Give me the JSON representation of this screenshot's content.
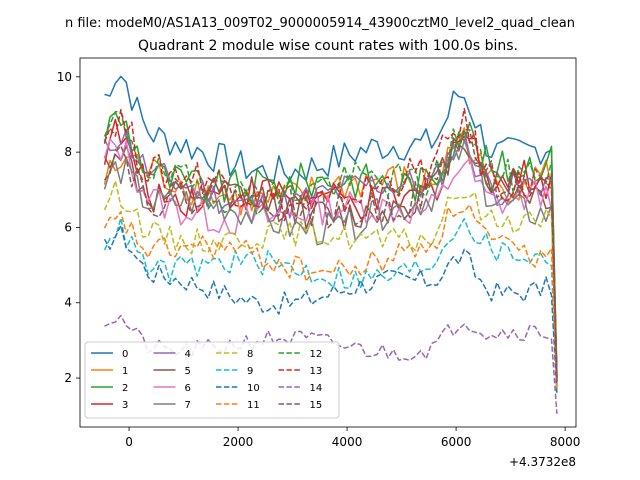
{
  "figure": {
    "suptitle": "n file: modeM0/AS1A13_009T02_9000005914_43900cztM0_level2_quad_clean",
    "title": "Quadrant 2 module wise count rates with 100.0s bins.",
    "x_offset_label": "+4.3732e8"
  },
  "chart_data": {
    "type": "line",
    "title": "Quadrant 2 module wise count rates with 100.0s bins.",
    "xlabel": "",
    "ylabel": "",
    "x_offset": "+4.3732e8",
    "xlim": [
      -900,
      8200
    ],
    "ylim": [
      0.7,
      10.5
    ],
    "xticks": [
      0,
      2000,
      4000,
      6000,
      8000
    ],
    "yticks": [
      2,
      4,
      6,
      8,
      10
    ],
    "grid": false,
    "legend": {
      "placement": "lower-left",
      "columns": 4
    },
    "x": [
      -450,
      7850
    ],
    "n_points": 84,
    "series": [
      {
        "name": "0",
        "color": "#1f77b4",
        "dash": "solid",
        "baseline": 8.2,
        "start": 9.0,
        "end": 2.1,
        "phase": 0.5,
        "amp": 0.45
      },
      {
        "name": "1",
        "color": "#ff7f0e",
        "dash": "solid",
        "baseline": 7.3,
        "start": 6.5,
        "end": 2.0,
        "phase": 1.1,
        "amp": 0.5
      },
      {
        "name": "2",
        "color": "#2ca02c",
        "dash": "solid",
        "baseline": 7.5,
        "start": 7.9,
        "end": 2.0,
        "phase": 2.1,
        "amp": 0.5
      },
      {
        "name": "3",
        "color": "#d62728",
        "dash": "solid",
        "baseline": 7.1,
        "start": 7.8,
        "end": 2.1,
        "phase": 3.2,
        "amp": 0.5
      },
      {
        "name": "4",
        "color": "#9467bd",
        "dash": "solid",
        "baseline": 7.2,
        "start": 7.4,
        "end": 1.9,
        "phase": 0.9,
        "amp": 0.45
      },
      {
        "name": "5",
        "color": "#8c564b",
        "dash": "solid",
        "baseline": 6.9,
        "start": 7.6,
        "end": 1.9,
        "phase": 4.2,
        "amp": 0.45
      },
      {
        "name": "6",
        "color": "#e377c2",
        "dash": "solid",
        "baseline": 6.7,
        "start": 7.2,
        "end": 1.8,
        "phase": 1.7,
        "amp": 0.45
      },
      {
        "name": "7",
        "color": "#7f7f7f",
        "dash": "solid",
        "baseline": 6.6,
        "start": 7.0,
        "end": 1.8,
        "phase": 5.1,
        "amp": 0.45
      },
      {
        "name": "8",
        "color": "#bcbd22",
        "dash": "dashed",
        "baseline": 6.0,
        "start": 6.2,
        "end": 1.7,
        "phase": 2.6,
        "amp": 0.35
      },
      {
        "name": "9",
        "color": "#17becf",
        "dash": "dashed",
        "baseline": 5.1,
        "start": 5.6,
        "end": 1.6,
        "phase": 3.7,
        "amp": 0.35
      },
      {
        "name": "10",
        "color": "#1f77b4",
        "dash": "dashed",
        "baseline": 4.5,
        "start": 5.2,
        "end": 1.6,
        "phase": 0.3,
        "amp": 0.3
      },
      {
        "name": "11",
        "color": "#ff7f0e",
        "dash": "dashed",
        "baseline": 5.4,
        "start": 5.8,
        "end": 1.7,
        "phase": 4.8,
        "amp": 0.35
      },
      {
        "name": "12",
        "color": "#2ca02c",
        "dash": "dashed",
        "baseline": 7.4,
        "start": 7.7,
        "end": 2.0,
        "phase": 1.4,
        "amp": 0.5
      },
      {
        "name": "13",
        "color": "#d62728",
        "dash": "dashed",
        "baseline": 7.3,
        "start": 8.2,
        "end": 2.0,
        "phase": 5.6,
        "amp": 0.5
      },
      {
        "name": "14",
        "color": "#9467bd",
        "dash": "dashed",
        "baseline": 3.0,
        "start": 3.3,
        "end": 1.05,
        "phase": 2.9,
        "amp": 0.25
      },
      {
        "name": "15",
        "color": "#8c564b",
        "dash": "dashed",
        "baseline": 7.0,
        "start": 7.5,
        "end": 1.9,
        "phase": 3.9,
        "amp": 0.5
      }
    ]
  }
}
